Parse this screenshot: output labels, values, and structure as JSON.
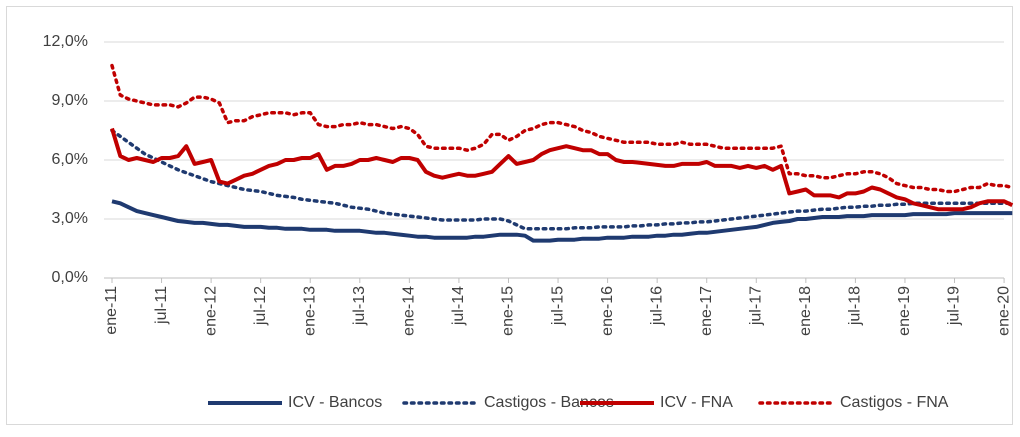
{
  "chart_data": {
    "type": "line",
    "categories": [
      "ene-11",
      null,
      null,
      null,
      null,
      null,
      "jul-11",
      null,
      null,
      null,
      null,
      null,
      "ene-12",
      null,
      null,
      null,
      null,
      null,
      "jul-12",
      null,
      null,
      null,
      null,
      null,
      "ene-13",
      null,
      null,
      null,
      null,
      null,
      "jul-13",
      null,
      null,
      null,
      null,
      null,
      "ene-14",
      null,
      null,
      null,
      null,
      null,
      "jul-14",
      null,
      null,
      null,
      null,
      null,
      "ene-15",
      null,
      null,
      null,
      null,
      null,
      "jul-15",
      null,
      null,
      null,
      null,
      null,
      "ene-16",
      null,
      null,
      null,
      null,
      null,
      "jul-16",
      null,
      null,
      null,
      null,
      null,
      "ene-17",
      null,
      null,
      null,
      null,
      null,
      "jul-17",
      null,
      null,
      null,
      null,
      null,
      "ene-18",
      null,
      null,
      null,
      null,
      null,
      "jul-18",
      null,
      null,
      null,
      null,
      null,
      "ene-19",
      null,
      null,
      null,
      null,
      null,
      "jul-19",
      null,
      null,
      null,
      null,
      null,
      "ene-20",
      null
    ],
    "series": [
      {
        "name": "ICV - Bancos",
        "color": "#1f3a70",
        "dash": "solid",
        "values": [
          3.9,
          3.8,
          3.6,
          3.4,
          3.3,
          3.2,
          3.1,
          3.0,
          2.9,
          2.85,
          2.8,
          2.8,
          2.75,
          2.7,
          2.7,
          2.65,
          2.6,
          2.6,
          2.6,
          2.55,
          2.55,
          2.5,
          2.5,
          2.5,
          2.45,
          2.45,
          2.45,
          2.4,
          2.4,
          2.4,
          2.4,
          2.35,
          2.3,
          2.3,
          2.25,
          2.2,
          2.15,
          2.1,
          2.1,
          2.05,
          2.05,
          2.05,
          2.05,
          2.05,
          2.1,
          2.1,
          2.15,
          2.2,
          2.2,
          2.2,
          2.15,
          1.9,
          1.9,
          1.9,
          1.95,
          1.95,
          1.95,
          2.0,
          2.0,
          2.0,
          2.05,
          2.05,
          2.05,
          2.1,
          2.1,
          2.1,
          2.15,
          2.15,
          2.2,
          2.2,
          2.25,
          2.3,
          2.3,
          2.35,
          2.4,
          2.45,
          2.5,
          2.55,
          2.6,
          2.7,
          2.8,
          2.85,
          2.9,
          3.0,
          3.0,
          3.05,
          3.1,
          3.1,
          3.1,
          3.15,
          3.15,
          3.15,
          3.2,
          3.2,
          3.2,
          3.2,
          3.2,
          3.25,
          3.25,
          3.25,
          3.25,
          3.25,
          3.3,
          3.3,
          3.3,
          3.3,
          3.3,
          3.3,
          3.3,
          3.3
        ]
      },
      {
        "name": "Castigos - Bancos",
        "color": "#1f3a70",
        "dash": "dotted",
        "values": [
          7.5,
          7.2,
          6.9,
          6.6,
          6.3,
          6.1,
          5.9,
          5.7,
          5.5,
          5.35,
          5.2,
          5.05,
          4.9,
          4.8,
          4.7,
          4.6,
          4.5,
          4.45,
          4.4,
          4.3,
          4.2,
          4.15,
          4.1,
          4.0,
          3.95,
          3.9,
          3.85,
          3.8,
          3.7,
          3.6,
          3.55,
          3.5,
          3.4,
          3.3,
          3.25,
          3.2,
          3.15,
          3.1,
          3.05,
          3.0,
          2.95,
          2.95,
          2.95,
          2.95,
          2.95,
          3.0,
          3.0,
          3.0,
          2.9,
          2.7,
          2.5,
          2.5,
          2.5,
          2.5,
          2.5,
          2.5,
          2.55,
          2.55,
          2.55,
          2.6,
          2.6,
          2.6,
          2.6,
          2.65,
          2.65,
          2.7,
          2.7,
          2.75,
          2.75,
          2.8,
          2.8,
          2.85,
          2.85,
          2.9,
          2.95,
          3.0,
          3.05,
          3.1,
          3.15,
          3.2,
          3.25,
          3.3,
          3.35,
          3.4,
          3.4,
          3.45,
          3.5,
          3.5,
          3.55,
          3.6,
          3.6,
          3.65,
          3.65,
          3.7,
          3.7,
          3.75,
          3.75,
          3.8,
          3.8,
          3.8,
          3.8,
          3.8,
          3.8,
          3.8,
          3.8,
          3.8,
          3.8,
          3.8,
          3.8,
          3.8
        ]
      },
      {
        "name": "ICV - FNA",
        "color": "#c00000",
        "dash": "solid",
        "values": [
          7.6,
          6.2,
          6.0,
          6.1,
          6.0,
          5.9,
          6.1,
          6.1,
          6.2,
          6.7,
          5.8,
          5.9,
          6.0,
          4.9,
          4.8,
          5.0,
          5.2,
          5.3,
          5.5,
          5.7,
          5.8,
          6.0,
          6.0,
          6.1,
          6.1,
          6.3,
          5.5,
          5.7,
          5.7,
          5.8,
          6.0,
          6.0,
          6.1,
          6.0,
          5.9,
          6.1,
          6.1,
          6.0,
          5.4,
          5.2,
          5.1,
          5.2,
          5.3,
          5.2,
          5.2,
          5.3,
          5.4,
          5.8,
          6.2,
          5.8,
          5.9,
          6.0,
          6.3,
          6.5,
          6.6,
          6.7,
          6.6,
          6.5,
          6.5,
          6.3,
          6.3,
          6.0,
          5.9,
          5.9,
          5.85,
          5.8,
          5.75,
          5.7,
          5.7,
          5.8,
          5.8,
          5.8,
          5.9,
          5.7,
          5.7,
          5.7,
          5.6,
          5.7,
          5.6,
          5.7,
          5.5,
          5.7,
          4.3,
          4.4,
          4.5,
          4.2,
          4.2,
          4.2,
          4.1,
          4.3,
          4.3,
          4.4,
          4.6,
          4.5,
          4.3,
          4.1,
          4.0,
          3.8,
          3.7,
          3.6,
          3.5,
          3.5,
          3.5,
          3.5,
          3.6,
          3.8,
          3.9,
          3.9,
          3.9,
          3.7
        ]
      },
      {
        "name": "Castigos - FNA",
        "color": "#c00000",
        "dash": "dotted",
        "values": [
          10.8,
          9.3,
          9.1,
          9.0,
          8.9,
          8.8,
          8.8,
          8.8,
          8.7,
          8.9,
          9.2,
          9.2,
          9.1,
          8.9,
          7.9,
          8.0,
          8.0,
          8.2,
          8.3,
          8.4,
          8.4,
          8.4,
          8.3,
          8.4,
          8.4,
          7.8,
          7.7,
          7.7,
          7.8,
          7.8,
          7.9,
          7.8,
          7.8,
          7.7,
          7.6,
          7.7,
          7.6,
          7.3,
          6.7,
          6.6,
          6.6,
          6.6,
          6.6,
          6.5,
          6.6,
          6.8,
          7.3,
          7.3,
          7.0,
          7.2,
          7.5,
          7.6,
          7.8,
          7.9,
          7.9,
          7.8,
          7.7,
          7.5,
          7.4,
          7.2,
          7.1,
          7.0,
          6.9,
          6.9,
          6.9,
          6.9,
          6.8,
          6.8,
          6.8,
          6.9,
          6.8,
          6.8,
          6.8,
          6.7,
          6.6,
          6.6,
          6.6,
          6.6,
          6.6,
          6.6,
          6.6,
          6.7,
          5.3,
          5.3,
          5.2,
          5.2,
          5.1,
          5.1,
          5.2,
          5.3,
          5.3,
          5.4,
          5.4,
          5.3,
          5.1,
          4.8,
          4.7,
          4.6,
          4.6,
          4.5,
          4.5,
          4.4,
          4.4,
          4.5,
          4.6,
          4.6,
          4.8,
          4.7,
          4.7,
          4.6
        ]
      }
    ],
    "ylim": [
      0,
      12
    ],
    "yticks": [
      {
        "value": 0,
        "label": "0,0%"
      },
      {
        "value": 3,
        "label": "3,0%"
      },
      {
        "value": 6,
        "label": "6,0%"
      },
      {
        "value": 9,
        "label": "9,0%"
      },
      {
        "value": 12,
        "label": "12,0%"
      }
    ],
    "grid": true,
    "legend": "bottom"
  }
}
